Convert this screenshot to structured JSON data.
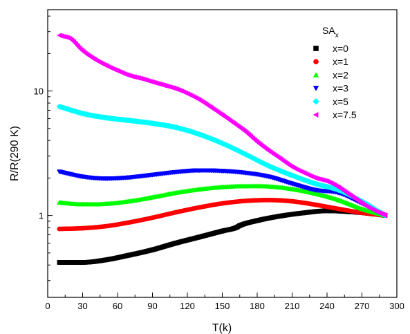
{
  "chart_data": {
    "type": "scatter",
    "title": "",
    "xlabel": "T(k)",
    "ylabel": "R/R(290 K)",
    "xlim": [
      0,
      300
    ],
    "ylim": [
      0.22,
      45
    ],
    "yscale": "log",
    "x_ticks": [
      0,
      30,
      60,
      90,
      120,
      150,
      180,
      210,
      240,
      270,
      300
    ],
    "x_tick_labels": [
      "0",
      "30",
      "60",
      "90",
      "120",
      "150",
      "180",
      "210",
      "240",
      "270",
      "300"
    ],
    "y_major_ticks": [
      1,
      10
    ],
    "y_tick_labels": [
      "1",
      "10"
    ],
    "grid": false,
    "legend": {
      "title": "SA",
      "title_subscript": "x",
      "position": "top-right"
    },
    "series": [
      {
        "name": "x=0",
        "marker": "square",
        "color": "#000000",
        "x": [
          10,
          30,
          50,
          70,
          90,
          110,
          130,
          150,
          162,
          165,
          180,
          200,
          220,
          240,
          260,
          280,
          290
        ],
        "y": [
          0.42,
          0.42,
          0.44,
          0.48,
          0.53,
          0.6,
          0.67,
          0.75,
          0.8,
          0.83,
          0.91,
          0.99,
          1.05,
          1.09,
          1.07,
          1.03,
          1.0
        ]
      },
      {
        "name": "x=1",
        "marker": "circle",
        "color": "#ff0000",
        "x": [
          10,
          30,
          50,
          70,
          90,
          110,
          130,
          150,
          170,
          190,
          210,
          230,
          250,
          270,
          290
        ],
        "y": [
          0.78,
          0.79,
          0.82,
          0.88,
          0.96,
          1.06,
          1.16,
          1.25,
          1.31,
          1.33,
          1.3,
          1.22,
          1.13,
          1.05,
          1.0
        ]
      },
      {
        "name": "x=2",
        "marker": "triangle-up",
        "color": "#00ff00",
        "x": [
          10,
          30,
          50,
          70,
          90,
          110,
          130,
          150,
          170,
          190,
          210,
          230,
          250,
          270,
          290
        ],
        "y": [
          1.27,
          1.23,
          1.24,
          1.3,
          1.4,
          1.52,
          1.62,
          1.69,
          1.72,
          1.71,
          1.63,
          1.5,
          1.33,
          1.13,
          1.0
        ]
      },
      {
        "name": "x=3",
        "marker": "triangle-down",
        "color": "#0000ff",
        "x": [
          10,
          30,
          50,
          70,
          90,
          110,
          130,
          150,
          170,
          190,
          210,
          230,
          250,
          270,
          290
        ],
        "y": [
          2.25,
          2.05,
          1.98,
          2.02,
          2.12,
          2.23,
          2.3,
          2.28,
          2.2,
          2.05,
          1.8,
          1.6,
          1.52,
          1.25,
          1.0
        ]
      },
      {
        "name": "x=5",
        "marker": "diamond",
        "color": "#00ffff",
        "x": [
          10,
          30,
          50,
          70,
          90,
          110,
          130,
          150,
          170,
          190,
          210,
          230,
          250,
          270,
          290
        ],
        "y": [
          7.5,
          6.6,
          6.1,
          5.8,
          5.5,
          5.1,
          4.5,
          3.8,
          3.1,
          2.5,
          2.1,
          1.8,
          1.6,
          1.3,
          1.0
        ]
      },
      {
        "name": "x=7.5",
        "marker": "triangle-left",
        "color": "#ff00ff",
        "x": [
          10,
          20,
          30,
          40,
          50,
          60,
          70,
          80,
          90,
          100,
          110,
          120,
          130,
          140,
          150,
          160,
          170,
          180,
          190,
          200,
          210,
          220,
          230,
          240,
          250,
          260,
          270,
          280,
          290
        ],
        "y": [
          28,
          26,
          21,
          18,
          16,
          14.5,
          13.3,
          12.6,
          11.8,
          11.1,
          10.4,
          9.5,
          8.5,
          7.4,
          6.4,
          5.5,
          4.7,
          3.9,
          3.3,
          2.85,
          2.45,
          2.2,
          2.0,
          1.88,
          1.68,
          1.45,
          1.25,
          1.1,
          1.0
        ]
      }
    ]
  }
}
